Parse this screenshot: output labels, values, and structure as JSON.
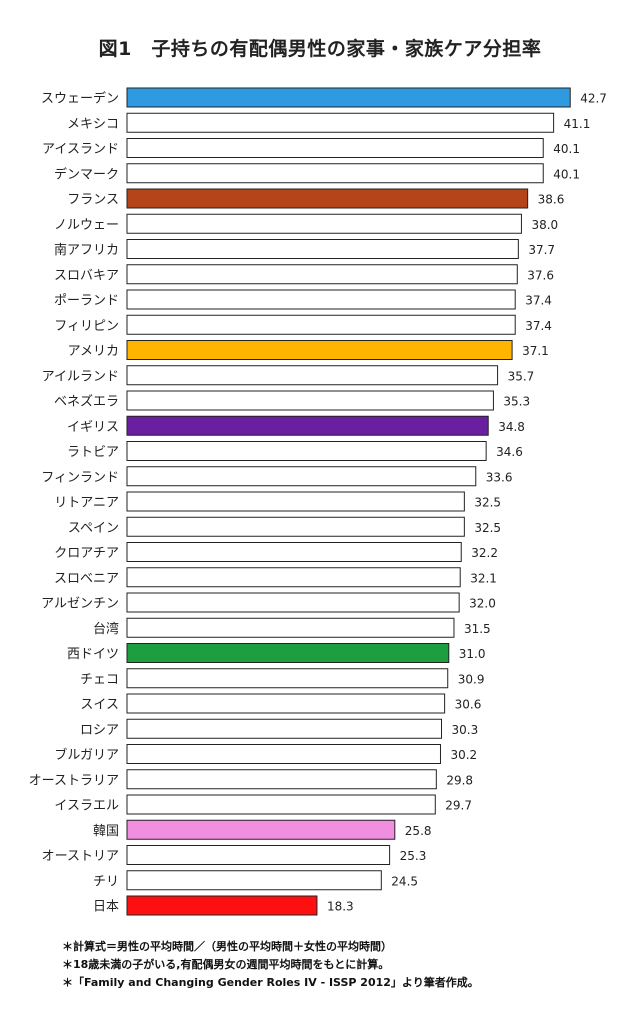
{
  "chart_data": {
    "type": "bar",
    "orientation": "horizontal",
    "title": "図1　子持ちの有配偶男性の家事・家族ケア分担率",
    "categories": [
      "スウェーデン",
      "メキシコ",
      "アイスランド",
      "デンマーク",
      "フランス",
      "ノルウェー",
      "南アフリカ",
      "スロバキア",
      "ポーランド",
      "フィリピン",
      "アメリカ",
      "アイルランド",
      "ベネズエラ",
      "イギリス",
      "ラトビア",
      "フィンランド",
      "リトアニア",
      "スペイン",
      "クロアチア",
      "スロベニア",
      "アルゼンチン",
      "台湾",
      "西ドイツ",
      "チェコ",
      "スイス",
      "ロシア",
      "ブルガリア",
      "オーストラリア",
      "イスラエル",
      "韓国",
      "オーストリア",
      "チリ",
      "日本"
    ],
    "values": [
      42.7,
      41.1,
      40.1,
      40.1,
      38.6,
      38.0,
      37.7,
      37.6,
      37.4,
      37.4,
      37.1,
      35.7,
      35.3,
      34.8,
      34.6,
      33.6,
      32.5,
      32.5,
      32.2,
      32.1,
      32.0,
      31.5,
      31.0,
      30.9,
      30.6,
      30.3,
      30.2,
      29.8,
      29.7,
      25.8,
      25.3,
      24.5,
      18.3
    ],
    "value_labels": [
      "42.7",
      "41.1",
      "40.1",
      "40.1",
      "38.6",
      "38.0",
      "37.7",
      "37.6",
      "37.4",
      "37.4",
      "37.1",
      "35.7",
      "35.3",
      "34.8",
      "34.6",
      "33.6",
      "32.5",
      "32.5",
      "32.2",
      "32.1",
      "32.0",
      "31.5",
      "31.0",
      "30.9",
      "30.6",
      "30.3",
      "30.2",
      "29.8",
      "29.7",
      "25.8",
      "25.3",
      "24.5",
      "18.3"
    ],
    "highlight_colors": {
      "スウェーデン": "#2f9ae0",
      "フランス": "#b5441a",
      "アメリカ": "#ffb400",
      "イギリス": "#6a1fa0",
      "西ドイツ": "#1d9e3f",
      "韓国": "#f08ee0",
      "日本": "#ff1010"
    },
    "default_bar_color": "#ffffff",
    "bar_border_color": "#222222",
    "grid": false,
    "legend": "none"
  },
  "notes": [
    "＊計算式＝男性の平均時間／（男性の平均時間＋女性の平均時間）",
    "＊18歳未満の子がいる,有配偶男女の週間平均時間をもとに計算。",
    "＊「Family and Changing Gender Roles IV - ISSP 2012」より筆者作成。"
  ]
}
